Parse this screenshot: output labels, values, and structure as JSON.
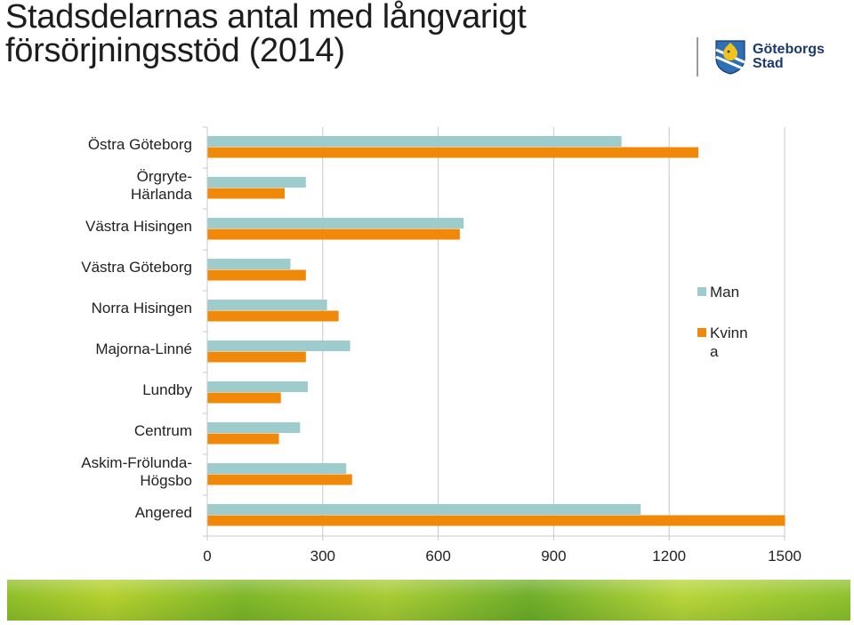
{
  "header": {
    "title_line1": "Stadsdelarnas antal med långvarigt",
    "title_line2": "försörjningsstöd (2014)"
  },
  "logo": {
    "line1": "Göteborgs",
    "line2": "Stad",
    "icon": "goteborg-coat-of-arms-icon"
  },
  "colors": {
    "man": "#9ecbcc",
    "kvinna": "#f0880a",
    "axis": "#c8c8c8"
  },
  "chart_data": {
    "type": "bar",
    "orientation": "horizontal",
    "title": "Stadsdelarnas antal med långvarigt försörjningsstöd (2014)",
    "categories": [
      "Östra Göteborg",
      "Örgryte-Härlanda",
      "Västra Hisingen",
      "Västra Göteborg",
      "Norra Hisingen",
      "Majorna-Linné",
      "Lundby",
      "Centrum",
      "Askim-Frölunda-Högsbo",
      "Angered"
    ],
    "category_label_lines": [
      [
        "Östra Göteborg"
      ],
      [
        "Örgryte-",
        "Härlanda"
      ],
      [
        "Västra Hisingen"
      ],
      [
        "Västra Göteborg"
      ],
      [
        "Norra Hisingen"
      ],
      [
        "Majorna-Linné"
      ],
      [
        "Lundby"
      ],
      [
        "Centrum"
      ],
      [
        "Askim-Frölunda-",
        "Högsbo"
      ],
      [
        "Angered"
      ]
    ],
    "series": [
      {
        "name": "Man",
        "values": [
          1075,
          255,
          665,
          215,
          310,
          370,
          260,
          240,
          360,
          1125
        ]
      },
      {
        "name": "Kvinna",
        "values": [
          1275,
          200,
          655,
          255,
          340,
          255,
          190,
          185,
          375,
          1500
        ]
      }
    ],
    "legend_labels": [
      "Man",
      "Kvinn\na"
    ],
    "xlim": [
      0,
      1500
    ],
    "xticks": [
      0,
      300,
      600,
      900,
      1200,
      1500
    ],
    "xlabel": "",
    "ylabel": "",
    "grid": true,
    "legend_position": "right"
  }
}
